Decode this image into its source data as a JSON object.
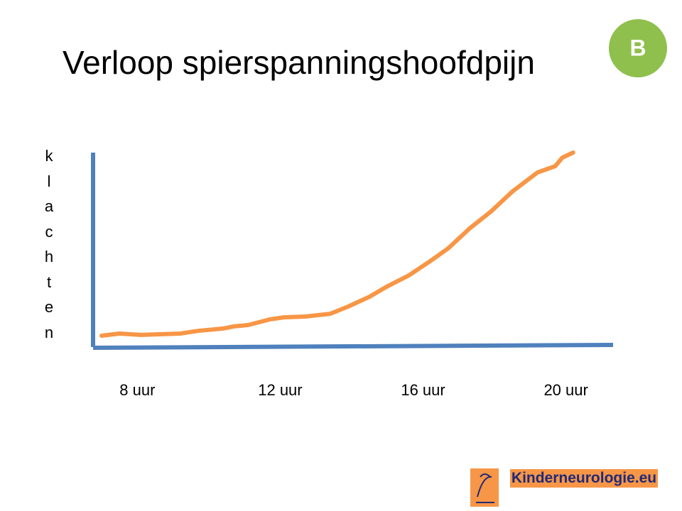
{
  "chart_data": {
    "type": "line",
    "title": "Verloop spierspanningshoofdpijn",
    "y_label": "klachten",
    "x": [
      7.0,
      7.5,
      8.1,
      9.2,
      9.7,
      10.4,
      10.7,
      11.1,
      11.7,
      12.1,
      12.7,
      13.4,
      13.9,
      14.5,
      15.0,
      15.6,
      16.2,
      16.7,
      17.3,
      17.9,
      18.5,
      19.2,
      19.7,
      19.9,
      20.2
    ],
    "values": [
      5.5,
      6.6,
      5.9,
      6.6,
      8,
      9.2,
      10.3,
      11,
      13.9,
      15,
      15.4,
      16.8,
      20.5,
      25.6,
      31,
      36.6,
      44,
      50.5,
      60.8,
      69.6,
      79.9,
      89.7,
      93,
      97.4,
      100
    ],
    "color": "#f79646",
    "xlim": [
      6.8,
      21.3
    ],
    "ylim": [
      0,
      100
    ],
    "xticks": [
      {
        "value": 8,
        "label": "8 uur"
      },
      {
        "value": 12,
        "label": "12 uur"
      },
      {
        "value": 16,
        "label": "16 uur"
      },
      {
        "value": 20,
        "label": "20 uur"
      }
    ]
  },
  "badge": "B",
  "logo": "Kinderneurologie.eu"
}
